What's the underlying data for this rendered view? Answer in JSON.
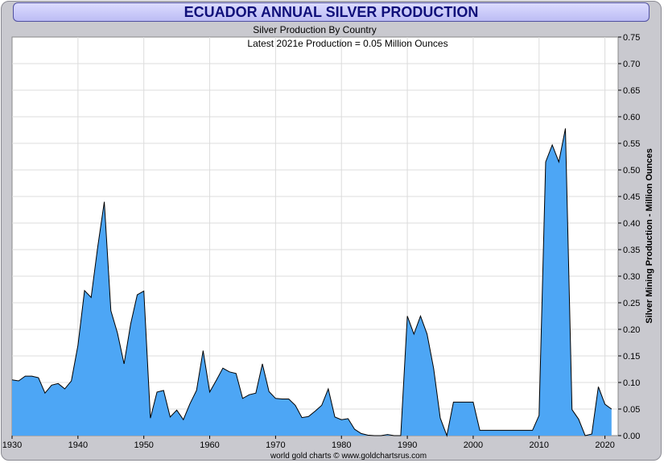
{
  "chart_data": {
    "type": "area",
    "title": "ECUADOR ANNUAL SILVER PRODUCTION",
    "subtitle": "Silver Production By Country",
    "annotation": "Latest 2021e Production = 0.05 Million Ounces",
    "ylabel": "Silver Mining Production - Million Ounces",
    "footer": "world gold charts © www.goldchartsrus.com",
    "xlim": [
      1930,
      2022
    ],
    "ylim": [
      0,
      0.75
    ],
    "x_ticks": [
      "1930",
      "1940",
      "1950",
      "1960",
      "1970",
      "1980",
      "1990",
      "2000",
      "2010",
      "2020"
    ],
    "y_ticks": [
      "0.00",
      "0.05",
      "0.10",
      "0.15",
      "0.20",
      "0.25",
      "0.30",
      "0.35",
      "0.40",
      "0.45",
      "0.50",
      "0.55",
      "0.60",
      "0.65",
      "0.70",
      "0.75"
    ],
    "grid": true,
    "colors": {
      "fill": "#4da6f5",
      "line": "#000000",
      "title": "#10107a",
      "frame": "#c9c9cf",
      "title_bg": "#c8c8f8"
    },
    "x": [
      1930,
      1931,
      1932,
      1933,
      1934,
      1935,
      1936,
      1937,
      1938,
      1939,
      1940,
      1941,
      1942,
      1943,
      1944,
      1945,
      1946,
      1947,
      1948,
      1949,
      1950,
      1951,
      1952,
      1953,
      1954,
      1955,
      1956,
      1957,
      1958,
      1959,
      1960,
      1961,
      1962,
      1963,
      1964,
      1965,
      1966,
      1967,
      1968,
      1969,
      1970,
      1971,
      1972,
      1973,
      1974,
      1975,
      1976,
      1977,
      1978,
      1979,
      1980,
      1981,
      1982,
      1983,
      1984,
      1985,
      1986,
      1987,
      1988,
      1989,
      1990,
      1991,
      1992,
      1993,
      1994,
      1995,
      1996,
      1997,
      1998,
      1999,
      2000,
      2001,
      2002,
      2003,
      2004,
      2005,
      2006,
      2007,
      2008,
      2009,
      2010,
      2011,
      2012,
      2013,
      2014,
      2015,
      2016,
      2017,
      2018,
      2019,
      2020,
      2021
    ],
    "values": [
      0.105,
      0.103,
      0.112,
      0.112,
      0.109,
      0.08,
      0.095,
      0.098,
      0.088,
      0.103,
      0.17,
      0.273,
      0.26,
      0.355,
      0.44,
      0.235,
      0.193,
      0.135,
      0.21,
      0.265,
      0.272,
      0.033,
      0.082,
      0.085,
      0.035,
      0.048,
      0.03,
      0.06,
      0.085,
      0.16,
      0.082,
      0.104,
      0.127,
      0.12,
      0.117,
      0.07,
      0.077,
      0.08,
      0.135,
      0.083,
      0.07,
      0.069,
      0.069,
      0.057,
      0.034,
      0.036,
      0.046,
      0.057,
      0.088,
      0.035,
      0.03,
      0.032,
      0.012,
      0.004,
      0.001,
      0.0,
      0.0,
      0.002,
      0.0,
      0.0,
      0.225,
      0.191,
      0.225,
      0.191,
      0.126,
      0.033,
      0.0,
      0.063,
      0.063,
      0.063,
      0.063,
      0.01,
      0.01,
      0.01,
      0.01,
      0.01,
      0.01,
      0.01,
      0.01,
      0.01,
      0.038,
      0.515,
      0.547,
      0.515,
      0.578,
      0.049,
      0.031,
      0.0,
      0.003,
      0.092,
      0.059,
      0.05
    ]
  }
}
